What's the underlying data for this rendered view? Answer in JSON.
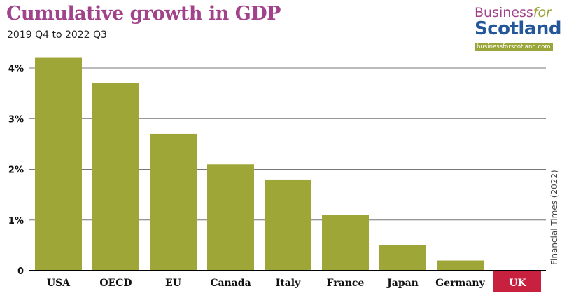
{
  "chart_data": {
    "type": "bar",
    "title": "Cumulative growth in GDP",
    "subtitle": "2019 Q4 to 2022 Q3",
    "categories": [
      "USA",
      "OECD",
      "EU",
      "Canada",
      "Italy",
      "France",
      "Japan",
      "Germany",
      "UK"
    ],
    "values": [
      4.2,
      3.7,
      2.7,
      2.1,
      1.8,
      1.1,
      0.5,
      0.2,
      0
    ],
    "yticks": [
      0,
      1,
      2,
      3,
      4
    ],
    "ytick_labels": [
      "0",
      "1%",
      "2%",
      "3%",
      "4%"
    ],
    "ylim": [
      0,
      4.3
    ],
    "grid": true,
    "xlabel": "",
    "ylabel": "",
    "source": "Financial Times (2022)",
    "colors": {
      "bar": "#9ea637",
      "highlight": "#c8203f",
      "title": "#a1428a"
    },
    "highlight_category": "UK"
  },
  "logo": {
    "line1": "Business",
    "line1b": "for",
    "line2": "Scotland",
    "url_text": "businessforscotland.com"
  }
}
